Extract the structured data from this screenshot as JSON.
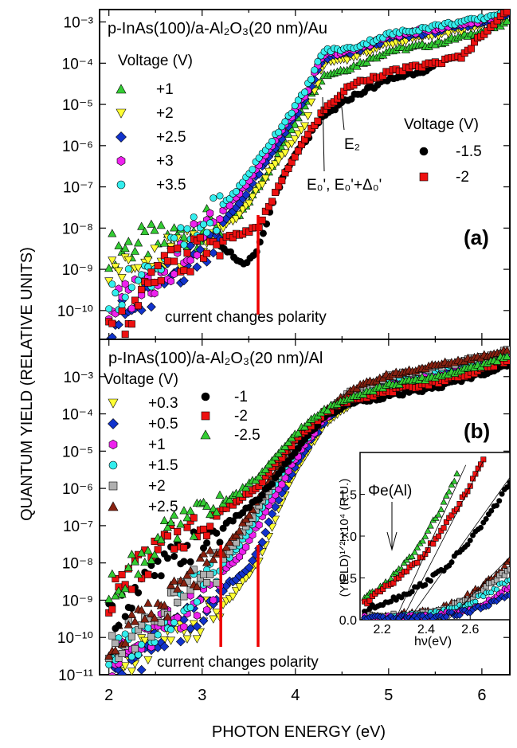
{
  "figure": {
    "ylabel": "QUANTUM YIELD (RELATIVE UNITS)",
    "xlabel": "PHOTON ENERGY (eV)",
    "colors": {
      "+1": "#33cc33",
      "+2": "#ffff33",
      "+2.5": "#1133cc",
      "+3": "#ee22ee",
      "+3.5": "#33eeee",
      "-1.5": "#000000",
      "-2": "#ee1111",
      "+0.3": "#ffff33",
      "+0.5": "#1133cc",
      "+1.5": "#33eeee",
      "+2b": "#b0b0b0",
      "+2.5b": "#882211",
      "-1": "#000000",
      "-2.5": "#33cc33",
      "marker": "#ee0000"
    }
  },
  "chart_data": [
    {
      "type": "scatter",
      "panel_label": "(a)",
      "structure_label": "p-InAs(100)/a-Al₂O₃(20 nm)/Au",
      "legend_pos_title": "Voltage (V)",
      "legend_neg_title": "Voltage (V)",
      "annotations": {
        "e0": "E₀', E₀'+Δ₀'",
        "e2": "E₂",
        "note": "current changes polarity"
      },
      "y_scale": "log",
      "xlim": [
        1.9,
        6.3
      ],
      "ylim": [
        2e-11,
        0.002
      ],
      "y_ticks": [
        {
          "label": "10⁻³",
          "v": 0.001
        },
        {
          "label": "10⁻⁴",
          "v": 0.0001
        },
        {
          "label": "10⁻⁵",
          "v": 1e-05
        },
        {
          "label": "10⁻⁶",
          "v": 1e-06
        },
        {
          "label": "10⁻⁷",
          "v": 1e-07
        },
        {
          "label": "10⁻⁸",
          "v": 1e-08
        },
        {
          "label": "10⁻⁹",
          "v": 1e-09
        },
        {
          "label": "10⁻¹⁰",
          "v": 1e-10
        }
      ],
      "polarity_markers_x": [
        3.6
      ],
      "series": [
        {
          "name": "+1",
          "marker": "triangle-up",
          "color_key": "+1",
          "x": [
            2.0,
            2.3,
            2.6,
            3.0,
            3.4,
            3.8,
            4.1,
            4.3,
            4.6,
            5.0,
            5.5,
            6.0,
            6.3
          ],
          "y": [
            3e-09,
            4e-09,
            5e-09,
            1e-08,
            2e-08,
            5e-07,
            1e-05,
            5e-05,
            8e-05,
            0.0002,
            0.0003,
            0.0006,
            0.001
          ]
        },
        {
          "name": "+2",
          "marker": "triangle-down",
          "color_key": "+2",
          "x": [
            2.0,
            2.3,
            2.6,
            3.0,
            3.4,
            3.8,
            4.1,
            4.3,
            4.6,
            5.0,
            5.5,
            6.0,
            6.3
          ],
          "y": [
            1e-09,
            1e-09,
            2e-09,
            5e-09,
            2e-08,
            4e-07,
            3e-06,
            0.0001,
            0.00014,
            0.0003,
            0.0005,
            0.0008,
            0.0015
          ]
        },
        {
          "name": "+2.5",
          "marker": "diamond",
          "color_key": "+2.5",
          "x": [
            2.0,
            2.3,
            2.6,
            3.0,
            3.4,
            3.8,
            4.1,
            4.3,
            4.6,
            5.0,
            5.5,
            6.0,
            6.3
          ],
          "y": [
            5e-11,
            1e-10,
            5e-10,
            3e-09,
            4e-08,
            1e-06,
            1.2e-05,
            0.00013,
            0.00018,
            0.0004,
            0.0006,
            0.001,
            0.0015
          ]
        },
        {
          "name": "+3",
          "marker": "hexagon",
          "color_key": "+3",
          "x": [
            2.0,
            2.3,
            2.6,
            3.0,
            3.4,
            3.8,
            4.1,
            4.3,
            4.6,
            5.0,
            5.5,
            6.0,
            6.3
          ],
          "y": [
            1e-10,
            3e-10,
            1e-09,
            7e-09,
            7e-08,
            1.5e-06,
            1.6e-05,
            0.00016,
            0.0002,
            0.00045,
            0.0007,
            0.0011,
            0.0017
          ]
        },
        {
          "name": "+3.5",
          "marker": "circle",
          "color_key": "+3.5",
          "x": [
            2.0,
            2.3,
            2.6,
            3.0,
            3.4,
            3.8,
            4.1,
            4.3,
            4.6,
            5.0,
            5.5,
            6.0,
            6.3
          ],
          "y": [
            2e-10,
            5e-10,
            2e-09,
            1e-08,
            1e-07,
            2e-06,
            2e-05,
            0.0002,
            0.00023,
            0.0005,
            0.0008,
            0.0012,
            0.002
          ]
        },
        {
          "name": "-1.5",
          "marker": "circle",
          "color_key": "-1.5",
          "x": [
            3.2,
            3.35,
            3.45,
            3.55,
            3.6,
            3.8,
            4.0,
            4.3,
            4.6,
            5.0,
            5.5
          ],
          "y": [
            4e-09,
            2e-09,
            1.2e-09,
            2e-09,
            3e-09,
            8e-08,
            6e-07,
            5e-06,
            1.5e-05,
            4e-05,
            8e-05
          ]
        },
        {
          "name": "-2",
          "marker": "square",
          "color_key": "-2",
          "x": [
            2.0,
            2.6,
            3.0,
            3.3,
            3.6,
            3.8,
            4.0,
            4.3,
            4.6,
            5.0,
            5.5,
            5.8,
            6.0,
            6.3
          ],
          "y": [
            2e-11,
            1e-09,
            3e-09,
            6e-09,
            1e-08,
            8e-08,
            6e-07,
            7e-06,
            3e-05,
            6e-05,
            0.0001,
            0.00015,
            0.0005,
            0.002
          ]
        }
      ]
    },
    {
      "type": "scatter",
      "panel_label": "(b)",
      "structure_label": "p-InAs(100)/a-Al₂O₃(20 nm)/Al",
      "legend_title": "Voltage (V)",
      "annotations": {
        "note": "current changes polarity"
      },
      "y_scale": "log",
      "xlim": [
        1.9,
        6.3
      ],
      "ylim": [
        1e-11,
        0.01
      ],
      "y_ticks": [
        {
          "label": "10⁻³",
          "v": 0.001
        },
        {
          "label": "10⁻⁴",
          "v": 0.0001
        },
        {
          "label": "10⁻⁵",
          "v": 1e-05
        },
        {
          "label": "10⁻⁶",
          "v": 1e-06
        },
        {
          "label": "10⁻⁷",
          "v": 1e-07
        },
        {
          "label": "10⁻⁸",
          "v": 1e-08
        },
        {
          "label": "10⁻⁹",
          "v": 1e-09
        },
        {
          "label": "10⁻¹⁰",
          "v": 1e-10
        },
        {
          "label": "10⁻¹¹",
          "v": 1e-11
        }
      ],
      "x_ticks": [
        "2",
        "3",
        "4",
        "5",
        "6"
      ],
      "polarity_markers_x": [
        3.2,
        3.6
      ],
      "series": [
        {
          "name": "+0.3",
          "marker": "triangle-down",
          "color_key": "+0.3",
          "x": [
            2.0,
            2.3,
            2.6,
            3.0,
            3.3,
            3.5,
            3.6,
            3.8,
            4.0,
            4.3,
            4.6,
            5.0,
            5.5,
            6.0,
            6.3
          ],
          "y": [
            1e-11,
            3e-11,
            1e-10,
            3e-10,
            1e-09,
            5e-09,
            1e-08,
            2e-07,
            3e-06,
            5e-05,
            0.0002,
            0.0006,
            0.001,
            0.002,
            0.003
          ]
        },
        {
          "name": "+0.5",
          "marker": "diamond",
          "color_key": "+0.5",
          "x": [
            2.0,
            2.3,
            2.6,
            3.0,
            3.3,
            3.45,
            3.6,
            3.8,
            4.0,
            4.3,
            4.6,
            5.0,
            5.5,
            6.0,
            6.3
          ],
          "y": [
            1e-11,
            3e-11,
            1e-10,
            5e-10,
            3e-09,
            5e-09,
            2e-08,
            4e-07,
            4e-06,
            6e-05,
            0.00025,
            0.0007,
            0.0012,
            0.0025,
            0.0035
          ]
        },
        {
          "name": "+1",
          "marker": "hexagon",
          "color_key": "+3",
          "x": [
            2.0,
            2.3,
            2.6,
            3.0,
            3.2,
            3.4,
            3.6,
            3.8,
            4.0,
            4.3,
            4.6,
            5.0,
            5.5,
            6.0,
            6.3
          ],
          "y": [
            2e-11,
            5e-11,
            2e-10,
            1e-09,
            5e-09,
            1.5e-08,
            1e-07,
            8e-07,
            6e-06,
            7e-05,
            0.0003,
            0.0008,
            0.0014,
            0.0028,
            0.004
          ]
        },
        {
          "name": "+1.5",
          "marker": "circle",
          "color_key": "+1.5",
          "x": [
            2.0,
            2.3,
            2.6,
            3.0,
            3.1,
            3.2,
            3.4,
            3.6,
            3.8,
            4.0,
            4.3,
            4.6,
            5.0,
            5.5,
            6.0,
            6.3
          ],
          "y": [
            3e-11,
            8e-11,
            3e-10,
            3e-09,
            5e-09,
            8e-09,
            3e-08,
            2e-07,
            1.5e-06,
            1e-05,
            8e-05,
            0.00035,
            0.0009,
            0.0016,
            0.003,
            0.0045
          ]
        },
        {
          "name": "+2",
          "marker": "square",
          "color_key": "+2b",
          "x": [
            2.0,
            2.3,
            2.6,
            3.0,
            3.2,
            3.4,
            3.6,
            3.8,
            4.0,
            4.3,
            4.6,
            5.0,
            5.5,
            6.0,
            6.3
          ],
          "y": [
            5e-11,
            1.5e-10,
            5e-10,
            4e-09,
            1e-08,
            5e-08,
            3e-07,
            2e-06,
            1.5e-05,
            9e-05,
            0.0004,
            0.001,
            0.0018,
            0.0032,
            0.005
          ]
        },
        {
          "name": "+2.5",
          "marker": "triangle-up",
          "color_key": "+2.5b",
          "x": [
            2.0,
            2.3,
            2.6,
            3.0,
            3.2,
            3.4,
            3.6,
            3.8,
            4.0,
            4.3,
            4.6,
            5.0,
            5.5,
            6.0,
            6.3
          ],
          "y": [
            8e-11,
            2e-10,
            8e-10,
            6e-09,
            1.5e-08,
            8e-08,
            5e-07,
            3e-06,
            2e-05,
            0.0001,
            0.00045,
            0.0011,
            0.002,
            0.0035,
            0.0055
          ]
        },
        {
          "name": "-1",
          "marker": "circle",
          "color_key": "-1",
          "x": [
            2.0,
            2.2,
            2.4,
            2.6,
            2.8,
            3.0,
            3.2,
            3.4,
            3.6,
            3.8,
            4.0,
            4.3,
            4.6,
            5.0,
            5.5,
            6.0,
            6.3
          ],
          "y": [
            3e-10,
            1e-09,
            3e-09,
            8e-09,
            2e-08,
            4e-08,
            8e-08,
            2e-07,
            5e-07,
            2e-06,
            1e-05,
            8e-05,
            0.0002,
            0.0003,
            0.0005,
            0.0012,
            0.002
          ]
        },
        {
          "name": "-2",
          "marker": "square",
          "color_key": "-2",
          "x": [
            2.0,
            2.2,
            2.4,
            2.6,
            2.8,
            3.0,
            3.2,
            3.4,
            3.6,
            3.8,
            4.0,
            4.3,
            4.6,
            5.0,
            5.5,
            6.0,
            6.3
          ],
          "y": [
            1e-09,
            4e-09,
            1e-08,
            3e-08,
            6e-08,
            1.2e-07,
            2.5e-07,
            5e-07,
            1.2e-06,
            5e-06,
            2e-05,
            0.0001,
            0.00025,
            0.0004,
            0.0007,
            0.0015,
            0.003
          ]
        },
        {
          "name": "-2.5",
          "marker": "triangle-up",
          "color_key": "-2.5",
          "x": [
            2.0,
            2.2,
            2.4,
            2.6,
            2.8,
            3.0,
            3.2,
            3.4,
            3.6,
            3.8,
            4.0,
            4.3,
            4.6,
            5.0,
            5.5,
            6.0,
            6.3
          ],
          "y": [
            1.5e-09,
            6e-09,
            2e-08,
            5e-08,
            1e-07,
            2e-07,
            4e-07,
            8e-07,
            2e-06,
            7e-06,
            3e-05,
            0.00012,
            0.0003,
            0.0006,
            0.001,
            0.002,
            0.004
          ]
        }
      ]
    },
    {
      "type": "scatter",
      "panel_label": "inset",
      "ylabel": "(YIELD)¹ᐟ² x10⁴ (R.U.)",
      "xlabel": "hν(eV)",
      "annotation": "Φe(Al)",
      "xlim": [
        2.1,
        2.78
      ],
      "ylim": [
        0,
        2.0
      ],
      "x_ticks": [
        "2.2",
        "2.4",
        "2.6"
      ],
      "y_ticks": [
        "0.0",
        "0.5",
        "1.0",
        "1.5"
      ],
      "series": [
        {
          "name": "-2.5",
          "marker": "triangle-up",
          "color_key": "-2.5",
          "x": [
            2.12,
            2.2,
            2.28,
            2.36,
            2.44,
            2.5,
            2.55
          ],
          "y": [
            0.25,
            0.4,
            0.6,
            0.85,
            1.2,
            1.5,
            1.8
          ]
        },
        {
          "name": "-2",
          "marker": "square",
          "color_key": "-2",
          "x": [
            2.12,
            2.2,
            2.28,
            2.36,
            2.44,
            2.52,
            2.6,
            2.66
          ],
          "y": [
            0.2,
            0.35,
            0.5,
            0.7,
            0.95,
            1.25,
            1.6,
            1.9
          ]
        },
        {
          "name": "-1",
          "marker": "circle",
          "color_key": "-1",
          "x": [
            2.12,
            2.2,
            2.3,
            2.4,
            2.5,
            2.6,
            2.7,
            2.78
          ],
          "y": [
            0.1,
            0.2,
            0.3,
            0.45,
            0.65,
            0.95,
            1.3,
            1.65
          ]
        },
        {
          "name": "+2.5",
          "marker": "triangle-up",
          "color_key": "+2.5b",
          "x": [
            2.12,
            2.3,
            2.45,
            2.6,
            2.7,
            2.78
          ],
          "y": [
            0.05,
            0.07,
            0.12,
            0.3,
            0.5,
            0.7
          ]
        },
        {
          "name": "+2",
          "marker": "square",
          "color_key": "+2b",
          "x": [
            2.12,
            2.3,
            2.45,
            2.6,
            2.7,
            2.78
          ],
          "y": [
            0.04,
            0.05,
            0.1,
            0.25,
            0.45,
            0.6
          ]
        },
        {
          "name": "+1.5",
          "marker": "circle",
          "color_key": "+1.5",
          "x": [
            2.12,
            2.3,
            2.45,
            2.6,
            2.7,
            2.78
          ],
          "y": [
            0.03,
            0.04,
            0.08,
            0.2,
            0.35,
            0.5
          ]
        },
        {
          "name": "+1",
          "marker": "hexagon",
          "color_key": "+3",
          "x": [
            2.12,
            2.3,
            2.45,
            2.6,
            2.7,
            2.78
          ],
          "y": [
            0.02,
            0.03,
            0.05,
            0.12,
            0.25,
            0.4
          ]
        },
        {
          "name": "+0.5",
          "marker": "diamond",
          "color_key": "+0.5",
          "x": [
            2.12,
            2.3,
            2.45,
            2.6,
            2.7,
            2.78
          ],
          "y": [
            0.01,
            0.02,
            0.04,
            0.1,
            0.2,
            0.3
          ]
        }
      ]
    }
  ]
}
